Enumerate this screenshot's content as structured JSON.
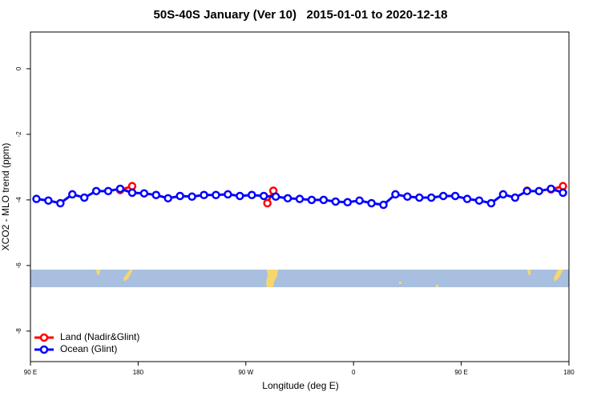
{
  "chart_data": {
    "type": "line",
    "title": "50S-40S January (Ver 10)   2015-01-01 to 2020-12-18",
    "x_label": "Longitude (deg E)",
    "y_label": "XCO2 - MLO trend (ppm)",
    "xlim": [
      90,
      540
    ],
    "ylim": [
      -8.93,
      1.12
    ],
    "xticks": [
      {
        "value": 90,
        "label": "90 E"
      },
      {
        "value": 180,
        "label": "180"
      },
      {
        "value": 270,
        "label": "90 W"
      },
      {
        "value": 360,
        "label": "0"
      },
      {
        "value": 450,
        "label": "90 E"
      },
      {
        "value": 540,
        "label": "180"
      }
    ],
    "yticks": [
      0,
      -2,
      -4,
      -6,
      -8
    ],
    "grid": false,
    "legend": "bottom-left",
    "series": [
      {
        "name": "Land (Nadir&Glint)",
        "color": "#ff0000",
        "x": [
          165,
          175,
          288,
          293,
          505,
          525,
          535
        ],
        "values": [
          -3.7,
          -3.58,
          -4.1,
          -3.72,
          -3.72,
          -3.68,
          -3.58
        ]
      },
      {
        "name": "Ocean (Glint)",
        "color": "#0000ff",
        "x": [
          95,
          105,
          115,
          125,
          135,
          145,
          155,
          165,
          175,
          185,
          195,
          205,
          215,
          225,
          235,
          245,
          255,
          265,
          275,
          285,
          295,
          305,
          315,
          325,
          335,
          345,
          355,
          365,
          375,
          385,
          395,
          405,
          415,
          425,
          435,
          445,
          455,
          465,
          475,
          485,
          495,
          505,
          515,
          525,
          535
        ],
        "values": [
          -3.97,
          -4.02,
          -4.1,
          -3.83,
          -3.93,
          -3.73,
          -3.73,
          -3.66,
          -3.78,
          -3.8,
          -3.85,
          -3.95,
          -3.88,
          -3.9,
          -3.85,
          -3.85,
          -3.83,
          -3.88,
          -3.85,
          -3.88,
          -3.9,
          -3.95,
          -3.97,
          -4.0,
          -4.0,
          -4.05,
          -4.07,
          -4.02,
          -4.1,
          -4.15,
          -3.83,
          -3.9,
          -3.93,
          -3.93,
          -3.88,
          -3.88,
          -3.97,
          -4.02,
          -4.1,
          -3.83,
          -3.93,
          -3.73,
          -3.73,
          -3.66,
          -3.78
        ]
      }
    ]
  }
}
